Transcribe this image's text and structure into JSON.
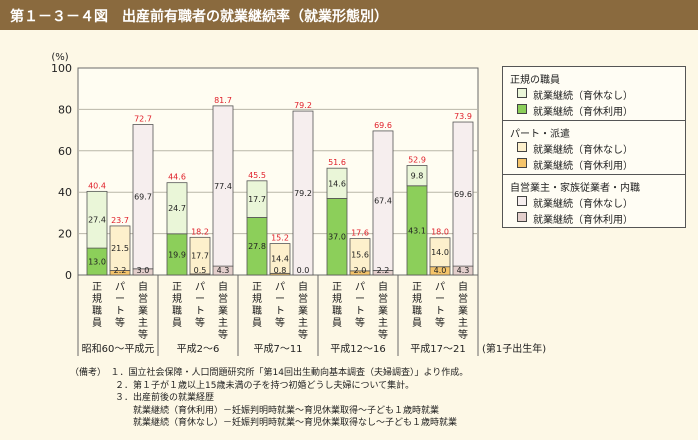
{
  "title": "第１－３－４図　出産前有職者の就業継続率（就業形態別）",
  "chart_data": {
    "type": "bar",
    "ylabel": "(%)",
    "ylim": [
      0,
      100
    ],
    "yticks": [
      0,
      20,
      40,
      60,
      80,
      100
    ],
    "x_axis_suffix": "(第1子出生年)",
    "categories": [
      "昭和60～平成元",
      "平成2～6",
      "平成7～11",
      "平成12～16",
      "平成17～21"
    ],
    "employment_types": [
      {
        "key": "regular",
        "label": "正規職員",
        "label_chars": [
          "正",
          "規",
          "職",
          "員"
        ],
        "light": "#eaf6d8",
        "dark": "#8ccf5a"
      },
      {
        "key": "part",
        "label": "パート等",
        "label_chars": [
          "パ",
          "ー",
          "ト",
          "等"
        ],
        "light": "#fdf0cc",
        "dark": "#f5c46a"
      },
      {
        "key": "self",
        "label": "自営業主等",
        "label_chars": [
          "自",
          "営",
          "業",
          "主",
          "等"
        ],
        "light": "#f6eeee",
        "dark": "#e4cfcc"
      }
    ],
    "groups": [
      {
        "category": "昭和60～平成元",
        "bars": [
          {
            "type": "regular",
            "with_leave": 13.0,
            "without_leave": 27.4,
            "total": 40.4
          },
          {
            "type": "part",
            "with_leave": 2.2,
            "without_leave": 21.5,
            "total": 23.7
          },
          {
            "type": "self",
            "with_leave": 3.0,
            "without_leave": 69.7,
            "total": 72.7
          }
        ]
      },
      {
        "category": "平成2～6",
        "bars": [
          {
            "type": "regular",
            "with_leave": 19.9,
            "without_leave": 24.7,
            "total": 44.6
          },
          {
            "type": "part",
            "with_leave": 0.5,
            "without_leave": 17.7,
            "total": 18.2
          },
          {
            "type": "self",
            "with_leave": 4.3,
            "without_leave": 77.4,
            "total": 81.7
          }
        ]
      },
      {
        "category": "平成7～11",
        "bars": [
          {
            "type": "regular",
            "with_leave": 27.8,
            "without_leave": 17.7,
            "total": 45.5
          },
          {
            "type": "part",
            "with_leave": 0.8,
            "without_leave": 14.4,
            "total": 15.2
          },
          {
            "type": "self",
            "with_leave": 0.0,
            "without_leave": 79.2,
            "total": 79.2
          }
        ]
      },
      {
        "category": "平成12～16",
        "bars": [
          {
            "type": "regular",
            "with_leave": 37.0,
            "without_leave": 14.6,
            "total": 51.6
          },
          {
            "type": "part",
            "with_leave": 2.0,
            "without_leave": 15.6,
            "total": 17.6
          },
          {
            "type": "self",
            "with_leave": 2.2,
            "without_leave": 67.4,
            "total": 69.6
          }
        ]
      },
      {
        "category": "平成17～21",
        "bars": [
          {
            "type": "regular",
            "with_leave": 43.1,
            "without_leave": 9.8,
            "total": 52.9
          },
          {
            "type": "part",
            "with_leave": 4.0,
            "without_leave": 14.0,
            "total": 18.0
          },
          {
            "type": "self",
            "with_leave": 4.3,
            "without_leave": 69.6,
            "total": 73.9
          }
        ]
      }
    ],
    "total_label_color": "#e0202a"
  },
  "legend": {
    "groups": [
      {
        "title": "正規の職員",
        "items": [
          {
            "label": "就業継続（育休なし）",
            "color": "#eaf6d8"
          },
          {
            "label": "就業継続（育休利用）",
            "color": "#8ccf5a"
          }
        ]
      },
      {
        "title": "パート・派遣",
        "items": [
          {
            "label": "就業継続（育休なし）",
            "color": "#fdf0cc"
          },
          {
            "label": "就業継続（育休利用）",
            "color": "#f5c46a"
          }
        ]
      },
      {
        "title": "自営業主・家族従業者・内職",
        "items": [
          {
            "label": "就業継続（育休なし）",
            "color": "#f6eeee"
          },
          {
            "label": "就業継続（育休利用）",
            "color": "#e4cfcc"
          }
        ]
      }
    ]
  },
  "notes": {
    "lines": [
      "（備考）　１．国立社会保障・人口問題研究所「第14回出生動向基本調査（夫婦調査）」より作成。",
      "　　　　　２．第１子が１歳以上15歳未満の子を持つ初婚どうし夫婦について集計。",
      "　　　　　３．出産前後の就業経歴",
      "　　　　　　　就業継続（育休利用）－妊娠判明時就業～育児休業取得～子ども１歳時就業",
      "　　　　　　　就業継続（育休なし）－妊娠判明時就業～育児休業取得なし～子ども１歳時就業"
    ]
  }
}
